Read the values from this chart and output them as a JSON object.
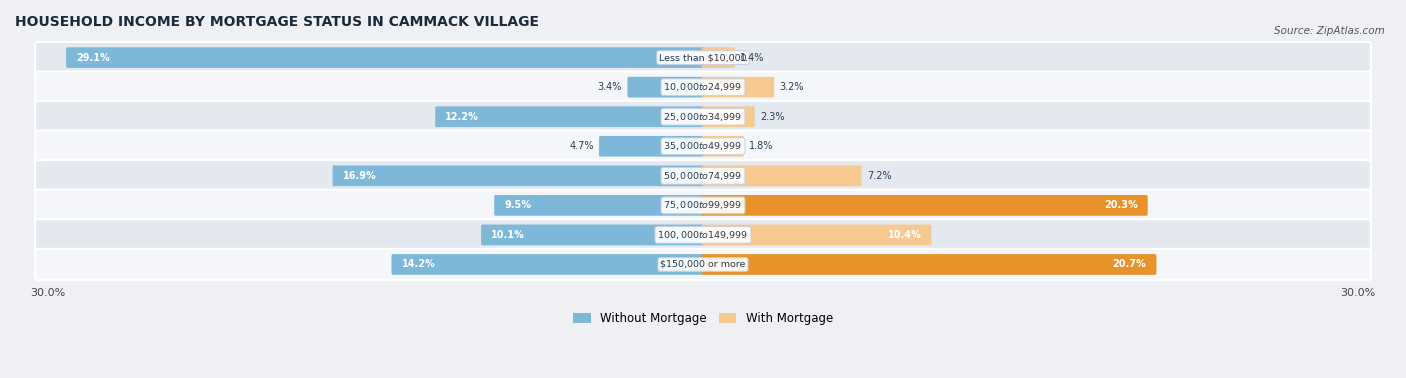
{
  "title": "HOUSEHOLD INCOME BY MORTGAGE STATUS IN CAMMACK VILLAGE",
  "source": "Source: ZipAtlas.com",
  "categories": [
    "Less than $10,000",
    "$10,000 to $24,999",
    "$25,000 to $34,999",
    "$35,000 to $49,999",
    "$50,000 to $74,999",
    "$75,000 to $99,999",
    "$100,000 to $149,999",
    "$150,000 or more"
  ],
  "without_mortgage": [
    29.1,
    3.4,
    12.2,
    4.7,
    16.9,
    9.5,
    10.1,
    14.2
  ],
  "with_mortgage": [
    1.4,
    3.2,
    2.3,
    1.8,
    7.2,
    20.3,
    10.4,
    20.7
  ],
  "without_mortgage_color": "#7db8d8",
  "without_mortgage_color_dark": "#e8a030",
  "with_mortgage_color_light": "#f5c990",
  "with_mortgage_color_dark": "#e8932a",
  "background_color": "#eef0f3",
  "row_bg_light": "#f4f6f9",
  "row_bg_dark": "#e4e9f0",
  "xlim": 30.0,
  "legend_labels": [
    "Without Mortgage",
    "With Mortgage"
  ],
  "x_tick_left": "30.0%",
  "x_tick_right": "30.0%",
  "with_mortgage_threshold": 15.0,
  "without_mortgage_threshold": 15.0
}
